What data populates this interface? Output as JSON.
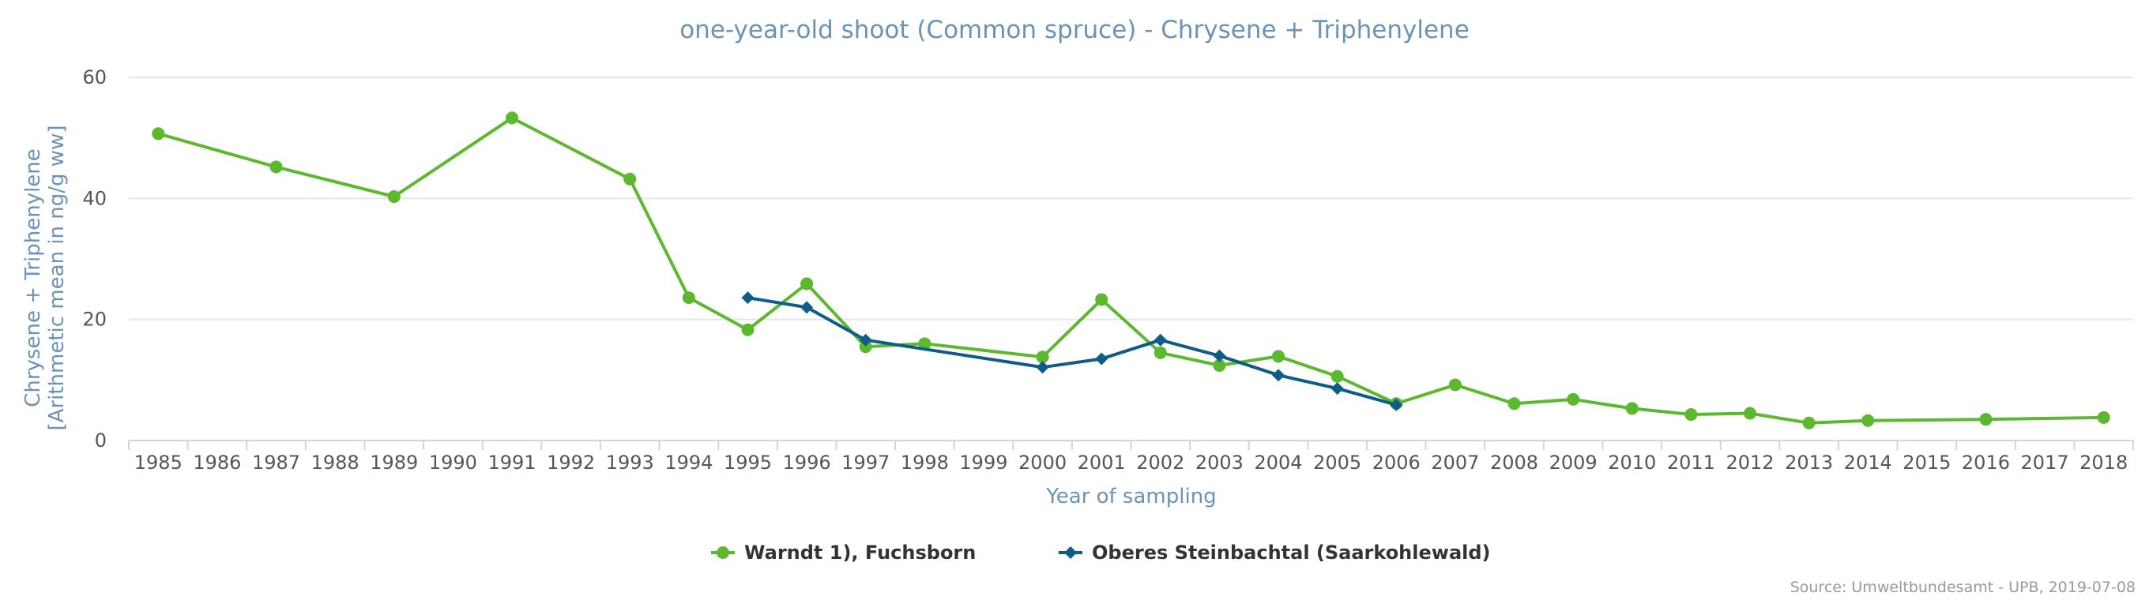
{
  "chart_data": {
    "type": "line",
    "title": "one-year-old shoot (Common spruce) - Chrysene + Triphenylene",
    "xlabel": "Year of sampling",
    "ylabel_line1": "Chrysene + Triphenylene",
    "ylabel_line2": "[Arithmetic mean in ng/g ww]",
    "categories": [
      "1985",
      "1986",
      "1987",
      "1988",
      "1989",
      "1990",
      "1991",
      "1992",
      "1993",
      "1994",
      "1995",
      "1996",
      "1997",
      "1998",
      "1999",
      "2000",
      "2001",
      "2002",
      "2003",
      "2004",
      "2005",
      "2006",
      "2007",
      "2008",
      "2009",
      "2010",
      "2011",
      "2012",
      "2013",
      "2014",
      "2015",
      "2016",
      "2017",
      "2018"
    ],
    "ylim": [
      0,
      60
    ],
    "yticks": [
      0,
      20,
      40,
      60
    ],
    "grid": true,
    "legend_position": "bottom-center",
    "series": [
      {
        "name": "Warndt 1), Fuchsborn",
        "color": "#5cb82e",
        "marker": "circle",
        "values": [
          50.7,
          null,
          45.2,
          null,
          40.3,
          null,
          53.3,
          null,
          43.2,
          23.6,
          18.3,
          25.9,
          15.5,
          16.0,
          null,
          13.8,
          23.3,
          14.5,
          12.4,
          13.9,
          10.6,
          6.1,
          9.2,
          6.1,
          6.8,
          5.3,
          4.3,
          4.5,
          2.9,
          3.3,
          null,
          3.5,
          null,
          3.8
        ]
      },
      {
        "name": "Oberes Steinbachtal (Saarkohlewald)",
        "color": "#0f5d87",
        "marker": "diamond",
        "values": [
          null,
          null,
          null,
          null,
          null,
          null,
          null,
          null,
          null,
          null,
          23.6,
          22.0,
          16.6,
          null,
          null,
          12.1,
          13.5,
          16.6,
          14.0,
          10.8,
          8.6,
          5.9,
          null,
          null,
          null,
          null,
          null,
          null,
          null,
          null,
          null,
          null,
          null,
          null
        ]
      }
    ],
    "source": "Source: Umweltbundesamt - UPB, 2019-07-08"
  }
}
